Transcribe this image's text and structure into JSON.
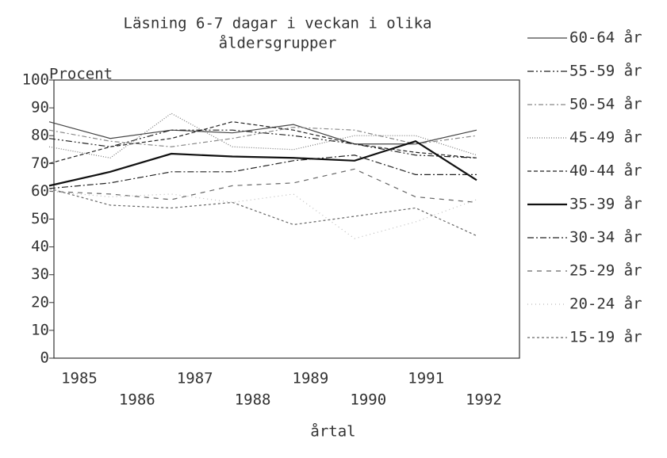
{
  "chart_data": {
    "type": "line",
    "title": [
      "Läsning 6-7 dagar i veckan i olika",
      "åldersgrupper"
    ],
    "y_label": "Procent",
    "x_label": "årtal",
    "categories": [
      "1985",
      "1986",
      "1987",
      "1988",
      "1989",
      "1990",
      "1991",
      "1992"
    ],
    "ylim": [
      0,
      100
    ],
    "yticks": [
      0,
      10,
      20,
      30,
      40,
      50,
      60,
      70,
      80,
      90,
      100
    ],
    "series": [
      {
        "name": "60-64 år",
        "color": "#444",
        "dash": "",
        "values": [
          85,
          79,
          82,
          81,
          84,
          77,
          77,
          82
        ]
      },
      {
        "name": "55-59 år",
        "color": "#222",
        "dash": "8 3 2 3 2 3",
        "values": [
          79,
          76,
          82,
          82,
          80,
          77,
          73,
          72
        ]
      },
      {
        "name": "50-54 år",
        "color": "#888",
        "dash": "6 3 2 3",
        "values": [
          82,
          78,
          76,
          79,
          83,
          82,
          77,
          80
        ]
      },
      {
        "name": "45-49 år",
        "color": "#777",
        "dash": "1 2",
        "values": [
          76,
          72,
          88,
          76,
          75,
          80,
          80,
          73
        ]
      },
      {
        "name": "40-44 år",
        "color": "#222",
        "dash": "5 3",
        "values": [
          70,
          76,
          79,
          85,
          82,
          77,
          74,
          72
        ]
      },
      {
        "name": "35-39 år",
        "color": "#111",
        "dash": "",
        "values": [
          62,
          67,
          73.5,
          72.5,
          72,
          71,
          78,
          64
        ]
      },
      {
        "name": "30-34 år",
        "color": "#222",
        "dash": "8 3 2 3",
        "values": [
          61,
          63,
          67,
          67,
          71,
          73,
          66,
          66
        ]
      },
      {
        "name": "25-29 år",
        "color": "#666",
        "dash": "6 6",
        "values": [
          60,
          59,
          57,
          62,
          63,
          68,
          58,
          56
        ]
      },
      {
        "name": "20-24 år",
        "color": "#bbb",
        "dash": "1 4",
        "values": [
          60,
          58,
          59,
          56,
          59,
          43,
          49,
          57
        ]
      },
      {
        "name": "15-19 år",
        "color": "#666",
        "dash": "3 3",
        "values": [
          61,
          55,
          54,
          56,
          48,
          51,
          54,
          44
        ]
      }
    ]
  }
}
